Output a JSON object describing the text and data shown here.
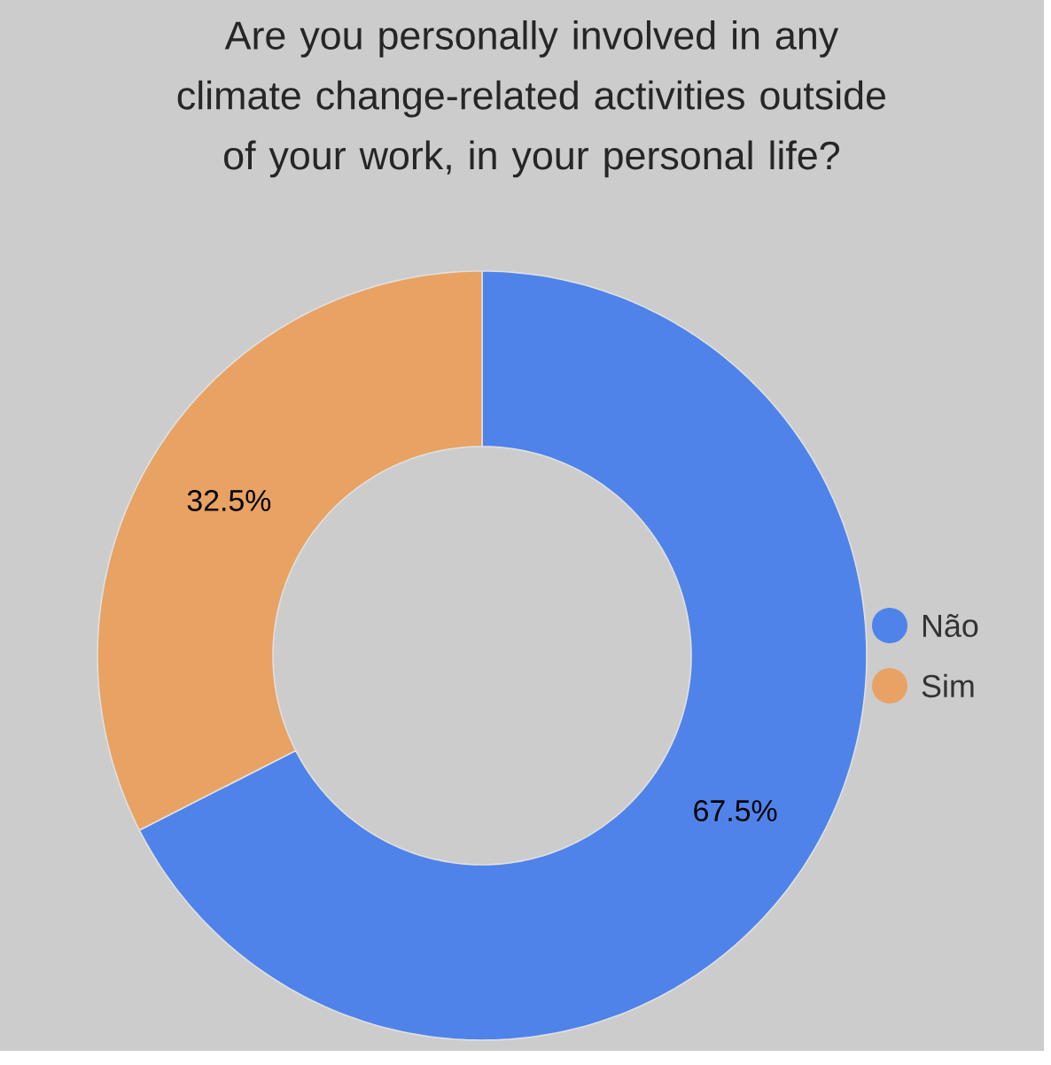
{
  "chart_data": {
    "type": "donut",
    "title": "Are you personally involved in any climate change-related activities outside of your work, in your personal life?",
    "categories": [
      "Não",
      "Sim"
    ],
    "values": [
      67.5,
      32.5
    ],
    "colors": [
      "#4f83ea",
      "#e8a263"
    ],
    "value_labels": [
      "67.5%",
      "32.5%"
    ],
    "legend": "right"
  }
}
